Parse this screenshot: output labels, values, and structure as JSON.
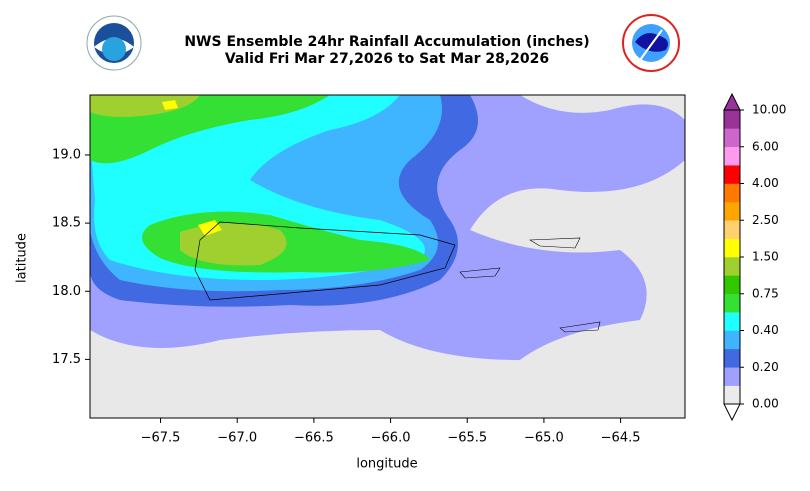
{
  "chart_data": {
    "type": "contour-map",
    "title": "NWS Ensemble 24hr Rainfall Accumulation (inches)",
    "subtitle": "Valid Fri Mar 27,2026 to Sat Mar 28,2026",
    "x_label": "longitude",
    "y_label": "latitude",
    "xlim": [
      -67.96,
      -64.08
    ],
    "ylim": [
      17.07,
      19.44
    ],
    "xticks": [
      {
        "value": -67.5,
        "label": "−67.5"
      },
      {
        "value": -67.0,
        "label": "−67.0"
      },
      {
        "value": -66.5,
        "label": "−66.5"
      },
      {
        "value": -66.0,
        "label": "−66.0"
      },
      {
        "value": -65.5,
        "label": "−65.5"
      },
      {
        "value": -65.0,
        "label": "−65.0"
      },
      {
        "value": -64.5,
        "label": "−64.5"
      }
    ],
    "yticks": [
      17.5,
      {
        "value": 18.0,
        "label": "18.0"
      },
      18.5,
      {
        "value": 19.0,
        "label": "19.0"
      }
    ],
    "colorbar": {
      "levels": [
        {
          "value": 0,
          "label": "0.00"
        },
        {
          "value": 0.2,
          "label": "0.20"
        },
        {
          "value": 0.4,
          "label": "0.40"
        },
        {
          "value": 0.75,
          "label": "0.75"
        },
        {
          "value": 1.5,
          "label": "1.50"
        },
        {
          "value": 2.5,
          "label": "2.50"
        },
        {
          "value": 4,
          "label": "4.00"
        },
        {
          "value": 6,
          "label": "6.00"
        },
        {
          "value": 10,
          "label": "10.00"
        }
      ],
      "colors": [
        "#ebebeb",
        "#a0a0ff",
        "#4169e1",
        "#3fb5ff",
        "#20ffff",
        "#33e033",
        "#32c800",
        "#a0d030",
        "#ffff00",
        "#ffd070",
        "#ffa500",
        "#ff7800",
        "#ff0000",
        "#ff99ee",
        "#cc66cc",
        "#993399"
      ],
      "extend": "both"
    }
  }
}
